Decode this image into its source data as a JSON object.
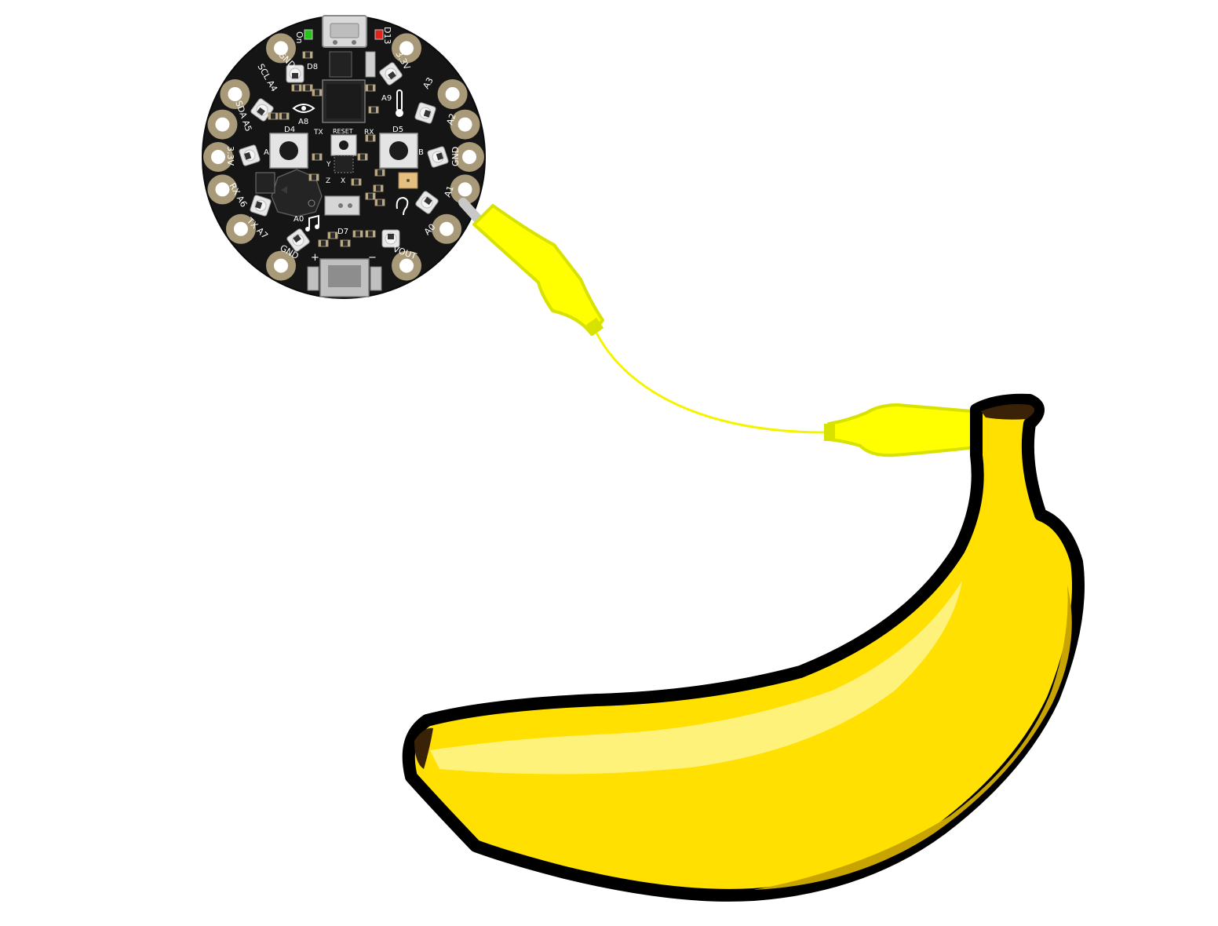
{
  "board": {
    "pad_labels": {
      "on": "On",
      "d13": "D13",
      "gnd_top": "GND",
      "v33_top": "3.3V",
      "scl_a4": "SCL A4",
      "a3": "A3",
      "sda_a5": "SDA A5",
      "a2": "A2",
      "v33_left": "3.3V",
      "gnd_right": "GND",
      "rx_a6": "RX A6",
      "a1": "A1",
      "tx_a7": "TX A7",
      "a0": "A0",
      "gnd_bottom": "GND",
      "vout": "VOUT"
    },
    "silk_labels": {
      "d8": "D8",
      "a9": "A9",
      "a8": "A8",
      "d4": "D4",
      "tx": "TX",
      "reset": "RESET",
      "rx": "RX",
      "d5": "D5",
      "btn_a": "A",
      "btn_b": "B",
      "y": "Y",
      "z": "Z",
      "x": "X",
      "a0_speaker": "A0",
      "d7": "D7",
      "plus": "+",
      "minus": "−"
    },
    "colors": {
      "pcb": "#151515",
      "pad": "#a89a78",
      "silk": "#ffffff",
      "led_on": "#27c41a",
      "led_d13": "#e0241b"
    }
  },
  "clip": {
    "color": "#ffff00",
    "edge": "#d8e200",
    "wire": "#f4f400"
  },
  "banana": {
    "body": "#ffe000",
    "highlight": "#fff27a",
    "shade": "#c8a400",
    "outline": "#000000",
    "tip": "#3a2208"
  }
}
